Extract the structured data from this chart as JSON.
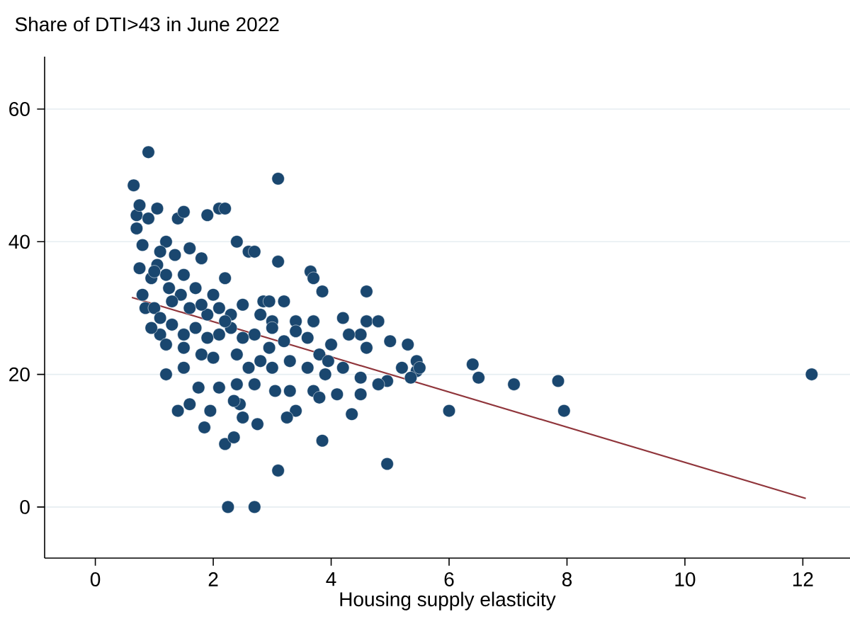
{
  "chart_data": {
    "type": "scatter",
    "title": "Share of DTI>43 in June 2022",
    "xlabel": "Housing supply elasticity",
    "xlim": [
      -0.86,
      12.8
    ],
    "ylim": [
      -7.7,
      67.9
    ],
    "xticks": [
      0,
      2,
      4,
      6,
      8,
      10,
      12
    ],
    "yticks": [
      0,
      20,
      40,
      60
    ],
    "grid": "y",
    "series": [
      {
        "color": "#1a476f",
        "marker": "circle",
        "x": [
          0.65,
          0.9,
          0.7,
          0.75,
          0.7,
          0.8,
          0.75,
          0.9,
          1.05,
          1.4,
          1.5,
          2.1,
          2.2,
          3.1,
          1.9,
          2.4,
          2.6,
          2.7,
          3.1,
          3.65,
          3.7,
          3.85,
          4.6,
          3.2,
          2.85,
          2.95,
          2.2,
          1.2,
          1.35,
          1.6,
          1.8,
          1.05,
          1.2,
          1.5,
          0.95,
          1.25,
          1.45,
          1.7,
          2.0,
          0.8,
          0.85,
          1.0,
          1.1,
          1.3,
          1.6,
          1.9,
          2.1,
          2.3,
          2.5,
          2.8,
          3.0,
          3.4,
          3.7,
          4.2,
          4.6,
          4.8,
          4.5,
          5.0,
          5.3,
          5.45,
          5.35,
          5.2,
          5.45,
          4.95,
          4.6,
          4.3,
          4.0,
          3.8,
          3.6,
          3.4,
          3.2,
          3.0,
          2.7,
          2.5,
          2.3,
          2.1,
          1.9,
          1.7,
          1.5,
          1.3,
          1.1,
          0.95,
          1.2,
          1.5,
          1.8,
          2.0,
          2.4,
          2.6,
          2.8,
          3.0,
          3.3,
          3.6,
          3.9,
          4.2,
          4.5,
          4.8,
          3.7,
          3.3,
          3.05,
          2.7,
          2.4,
          2.1,
          1.75,
          1.2,
          1.5,
          1.6,
          1.4,
          1.95,
          2.45,
          2.5,
          2.75,
          2.35,
          1.85,
          2.2,
          2.35,
          3.4,
          3.8,
          3.85,
          4.35,
          4.5,
          3.25,
          3.1,
          2.25,
          2.7,
          4.95,
          6.4,
          6.5,
          7.1,
          7.85,
          7.95,
          6.0,
          12.15,
          5.5,
          4.1,
          3.95,
          2.95,
          2.2,
          1.8,
          1.1,
          1.0
        ],
        "values": [
          48.5,
          53.5,
          44,
          45.5,
          42,
          39.5,
          36,
          43.5,
          45,
          43.5,
          44.5,
          45,
          45,
          49.5,
          44,
          40,
          38.5,
          38.5,
          37,
          35.5,
          34.5,
          32.5,
          32.5,
          31,
          31,
          31,
          34.5,
          40,
          38,
          39,
          37.5,
          36.5,
          35,
          35,
          34.5,
          33,
          32,
          33,
          32,
          32,
          30,
          30,
          28.5,
          31,
          30,
          29,
          30,
          29,
          30.5,
          29,
          28,
          28,
          28,
          28.5,
          28,
          28,
          26,
          25,
          24.5,
          20.5,
          19.5,
          21,
          22,
          19,
          24,
          26,
          24.5,
          23,
          25.5,
          26.5,
          25,
          27,
          26,
          25.5,
          27,
          26,
          25.5,
          27,
          26,
          27.5,
          26,
          27,
          24.5,
          24,
          23,
          22.5,
          23,
          21,
          22,
          21,
          22,
          21,
          20,
          21,
          19.5,
          18.5,
          17.5,
          17.5,
          17.5,
          18.5,
          18.5,
          18,
          18,
          20,
          21,
          15.5,
          14.5,
          14.5,
          15.5,
          13.5,
          12.5,
          16,
          12,
          9.5,
          10.5,
          14.5,
          16.5,
          10,
          14,
          17,
          13.5,
          5.5,
          0,
          0,
          6.5,
          21.5,
          19.5,
          18.5,
          19,
          14.5,
          14.5,
          20,
          21,
          17,
          22,
          24,
          28,
          30.5,
          38.5,
          35.5
        ]
      },
      {
        "type": "line",
        "color": "#90353b",
        "marker": "none",
        "x": [
          0.62,
          12.05
        ],
        "values": [
          31.6,
          1.3
        ]
      }
    ]
  }
}
